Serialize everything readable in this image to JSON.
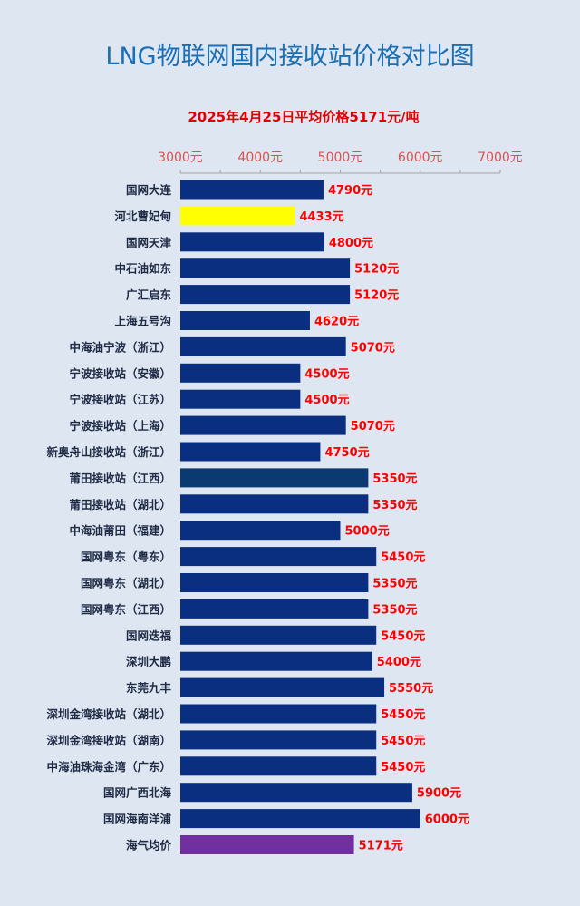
{
  "chart_data": {
    "type": "bar",
    "orientation": "horizontal",
    "title": "LNG物联网国内接收站价格对比图",
    "subtitle": "2025年4月25日平均价格5171元/吨",
    "xlim": [
      3000,
      7000
    ],
    "x_ticks": [
      "3000元",
      "4000元",
      "5000元",
      "6000元",
      "7000元"
    ],
    "x_axis_position": "top",
    "grid": false,
    "value_label_suffix": "元",
    "categories": [
      "国网大连",
      "河北曹妃甸",
      "国网天津",
      "中石油如东",
      "广汇启东",
      "上海五号沟",
      "中海油宁波（浙江）",
      "宁波接收站（安徽）",
      "宁波接收站（江苏）",
      "宁波接收站（上海）",
      "新奥舟山接收站（浙江）",
      "莆田接收站（江西）",
      "莆田接收站（湖北）",
      "中海油莆田（福建）",
      "国网粤东（粤东）",
      "国网粤东（湖北）",
      "国网粤东（江西）",
      "国网迭福",
      "深圳大鹏",
      "东莞九丰",
      "深圳金湾接收站（湖北）",
      "深圳金湾接收站（湖南）",
      "中海油珠海金湾（广东）",
      "国网广西北海",
      "国网海南洋浦",
      "海气均价"
    ],
    "values": [
      4790,
      4433,
      4800,
      5120,
      5120,
      4620,
      5070,
      4500,
      4500,
      5070,
      4750,
      5350,
      5350,
      5000,
      5450,
      5350,
      5350,
      5450,
      5400,
      5550,
      5450,
      5450,
      5450,
      5900,
      6000,
      5171
    ],
    "colors": {
      "default": "#0b2f80",
      "河北曹妃甸": "#ffff00",
      "莆田接收站（江西）": "#0b3a73",
      "海气均价": "#7030a0",
      "value_label": "#ff0000",
      "category_label": "#1f2a44",
      "tick_label": "#d9534f",
      "title": "#1a6fb5"
    }
  }
}
